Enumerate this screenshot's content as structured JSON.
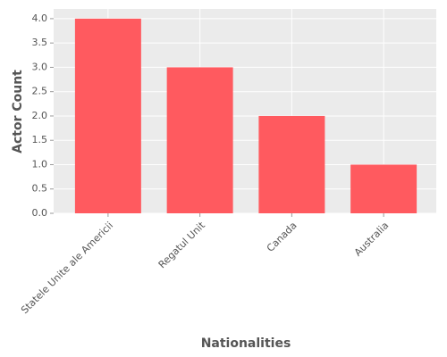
{
  "chart_data": {
    "type": "bar",
    "x_label": "Nationalities",
    "y_label": "Actor Count",
    "categories": [
      "Statele Unite ale Americii",
      "Regatul Unit",
      "Canada",
      "Australia"
    ],
    "values": [
      4,
      3,
      2,
      1
    ],
    "color": "#ff5a5f",
    "ylim": [
      0,
      4.2
    ],
    "yticks": [
      {
        "value": 0,
        "label": "0.0"
      },
      0.5,
      {
        "value": 1,
        "label": "1.0"
      },
      1.5,
      {
        "value": 2,
        "label": "2.0"
      },
      2.5,
      {
        "value": 3,
        "label": "3.0"
      },
      3.5,
      {
        "value": 4,
        "label": "4.0"
      }
    ],
    "grid": true
  }
}
